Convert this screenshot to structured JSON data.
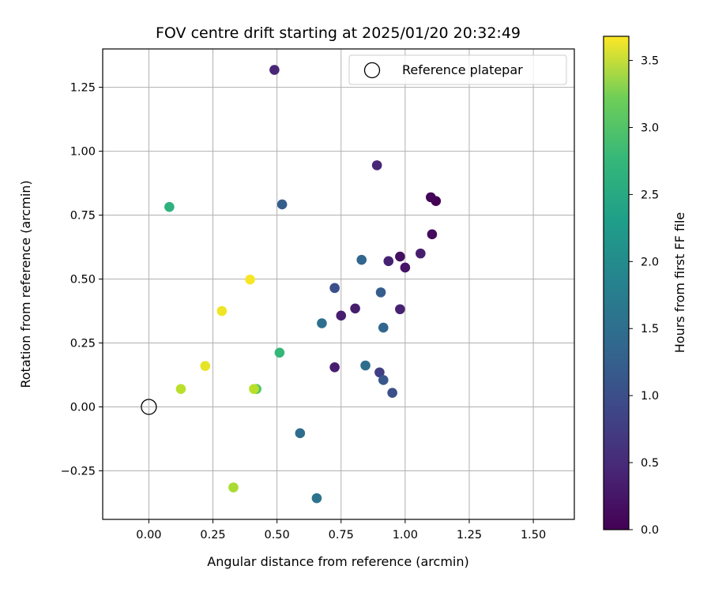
{
  "chart_data": {
    "type": "scatter",
    "title": "FOV centre drift starting at 2025/01/20 20:32:49",
    "xlabel": "Angular distance from reference (arcmin)",
    "ylabel": "Rotation from reference (arcmin)",
    "xlim": [
      -0.18,
      1.66
    ],
    "ylim": [
      -0.44,
      1.4
    ],
    "xticks": [
      0.0,
      0.25,
      0.5,
      0.75,
      1.0,
      1.25,
      1.5
    ],
    "xtick_labels": [
      "0.00",
      "0.25",
      "0.50",
      "0.75",
      "1.00",
      "1.25",
      "1.50"
    ],
    "yticks": [
      -0.25,
      0.0,
      0.25,
      0.5,
      0.75,
      1.0,
      1.25
    ],
    "ytick_labels": [
      "−0.25",
      "0.00",
      "0.25",
      "0.50",
      "0.75",
      "1.00",
      "1.25"
    ],
    "grid": true,
    "legend": {
      "position": "top-right",
      "entries": [
        "Reference platepar"
      ]
    },
    "reference_point": {
      "x": 0.0,
      "y": 0.0,
      "label": "Reference platepar"
    },
    "colorbar": {
      "label": "Hours from first FF file",
      "colormap": "viridis",
      "range": [
        0.0,
        3.68
      ],
      "ticks": [
        0.0,
        0.5,
        1.0,
        1.5,
        2.0,
        2.5,
        3.0,
        3.5
      ],
      "tick_labels": [
        "0.0",
        "0.5",
        "1.0",
        "1.5",
        "2.0",
        "2.5",
        "3.0",
        "3.5"
      ]
    },
    "points": [
      {
        "x": 1.12,
        "y": 0.805,
        "hours": 0.0
      },
      {
        "x": 1.1,
        "y": 0.82,
        "hours": 0.05
      },
      {
        "x": 1.105,
        "y": 0.675,
        "hours": 0.1
      },
      {
        "x": 0.98,
        "y": 0.588,
        "hours": 0.15
      },
      {
        "x": 1.0,
        "y": 0.545,
        "hours": 0.2
      },
      {
        "x": 1.06,
        "y": 0.6,
        "hours": 0.3
      },
      {
        "x": 0.935,
        "y": 0.57,
        "hours": 0.35
      },
      {
        "x": 0.89,
        "y": 0.945,
        "hours": 0.4
      },
      {
        "x": 0.49,
        "y": 1.318,
        "hours": 0.4
      },
      {
        "x": 0.98,
        "y": 0.382,
        "hours": 0.35
      },
      {
        "x": 0.805,
        "y": 0.385,
        "hours": 0.3
      },
      {
        "x": 0.75,
        "y": 0.357,
        "hours": 0.3
      },
      {
        "x": 0.725,
        "y": 0.155,
        "hours": 0.3
      },
      {
        "x": 0.9,
        "y": 0.135,
        "hours": 0.7
      },
      {
        "x": 0.725,
        "y": 0.465,
        "hours": 0.9
      },
      {
        "x": 0.95,
        "y": 0.055,
        "hours": 0.9
      },
      {
        "x": 0.915,
        "y": 0.105,
        "hours": 1.0
      },
      {
        "x": 0.52,
        "y": 0.792,
        "hours": 1.1
      },
      {
        "x": 0.905,
        "y": 0.448,
        "hours": 1.1
      },
      {
        "x": 0.83,
        "y": 0.575,
        "hours": 1.2
      },
      {
        "x": 0.915,
        "y": 0.31,
        "hours": 1.2
      },
      {
        "x": 0.845,
        "y": 0.162,
        "hours": 1.3
      },
      {
        "x": 0.59,
        "y": -0.103,
        "hours": 1.3
      },
      {
        "x": 0.675,
        "y": 0.327,
        "hours": 1.35
      },
      {
        "x": 0.655,
        "y": -0.357,
        "hours": 1.4
      },
      {
        "x": 0.08,
        "y": 0.782,
        "hours": 2.35
      },
      {
        "x": 0.51,
        "y": 0.212,
        "hours": 2.45
      },
      {
        "x": 0.42,
        "y": 0.07,
        "hours": 2.7
      },
      {
        "x": 0.41,
        "y": 0.07,
        "hours": 3.3
      },
      {
        "x": 0.33,
        "y": -0.315,
        "hours": 3.2
      },
      {
        "x": 0.125,
        "y": 0.07,
        "hours": 3.3
      },
      {
        "x": 0.22,
        "y": 0.16,
        "hours": 3.55
      },
      {
        "x": 0.285,
        "y": 0.375,
        "hours": 3.6
      },
      {
        "x": 0.395,
        "y": 0.498,
        "hours": 3.65
      }
    ]
  }
}
